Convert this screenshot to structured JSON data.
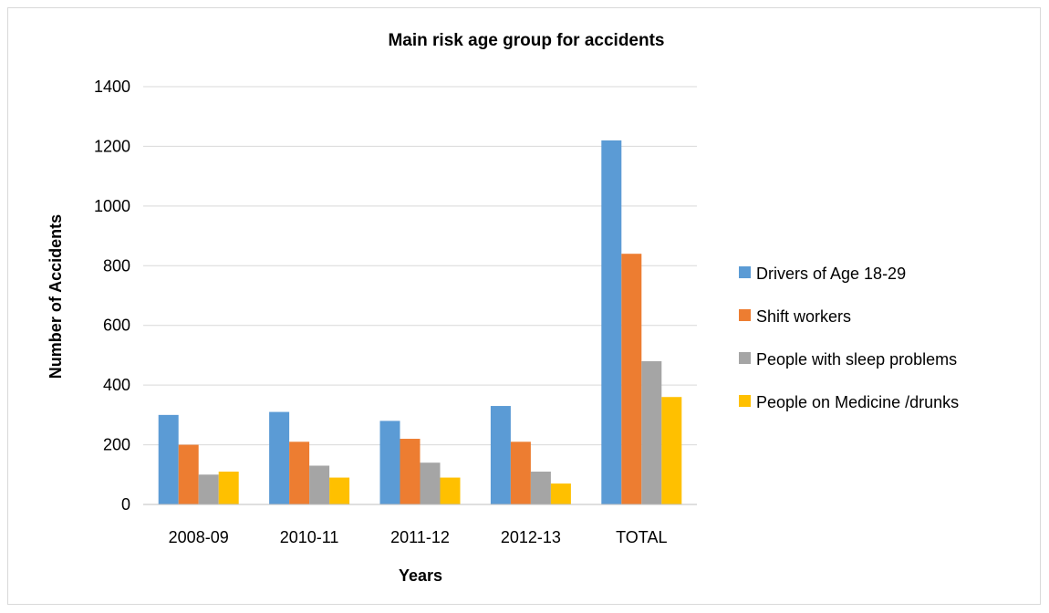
{
  "chart_data": {
    "type": "bar",
    "title": "Main risk age group for accidents",
    "xlabel": "Years",
    "ylabel": "Number of Accidents",
    "categories": [
      "2008-09",
      "2010-11",
      "2011-12",
      "2012-13",
      "TOTAL"
    ],
    "ylim": [
      0,
      1400
    ],
    "yticks": [
      "0",
      "200",
      "400",
      "600",
      "800",
      "1000",
      "1200",
      "1400"
    ],
    "grid": true,
    "legend_position": "right",
    "series": [
      {
        "name": "Drivers of Age 18-29",
        "color": "#5b9bd5",
        "values": [
          300,
          310,
          280,
          330,
          1220
        ]
      },
      {
        "name": "Shift workers",
        "color": "#ed7d31",
        "values": [
          200,
          210,
          220,
          210,
          840
        ]
      },
      {
        "name": "People with sleep problems",
        "color": "#a5a5a5",
        "values": [
          100,
          130,
          140,
          110,
          480
        ]
      },
      {
        "name": "People on Medicine /drunks",
        "color": "#ffc000",
        "values": [
          110,
          90,
          90,
          70,
          360
        ]
      }
    ]
  }
}
